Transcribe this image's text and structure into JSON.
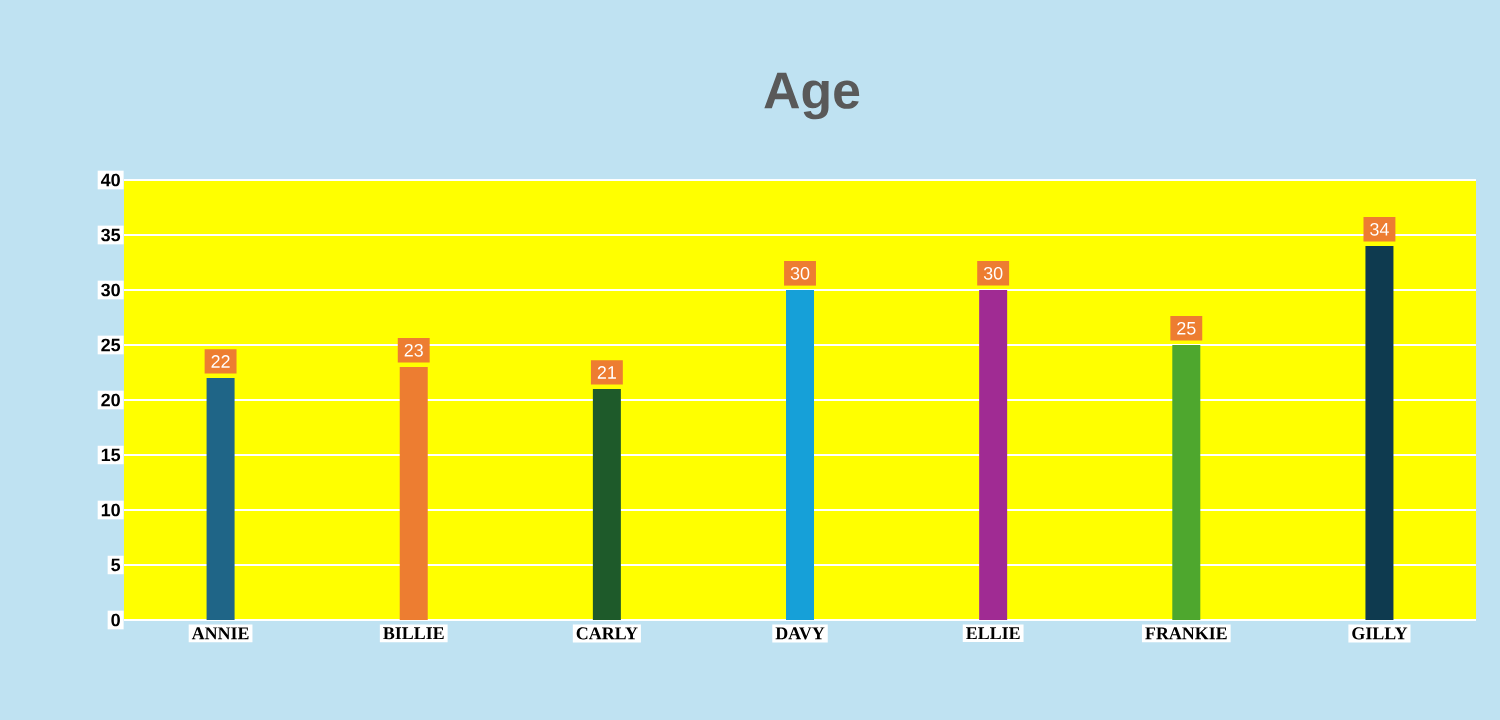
{
  "chart_data": {
    "type": "bar",
    "title": "Age",
    "categories": [
      "ANNIE",
      "BILLIE",
      "CARLY",
      "DAVY",
      "ELLIE",
      "FRANKIE",
      "GILLY"
    ],
    "values": [
      22,
      23,
      21,
      30,
      30,
      25,
      34
    ],
    "colors": [
      "#1f6587",
      "#ed7d31",
      "#1e5a2a",
      "#16a0d8",
      "#a02b93",
      "#4ea72e",
      "#0e3a4f"
    ],
    "ylim": [
      0,
      40
    ],
    "yticks": [
      0,
      5,
      10,
      15,
      20,
      25,
      30,
      35,
      40
    ],
    "grid": "y",
    "data_labels": true
  }
}
